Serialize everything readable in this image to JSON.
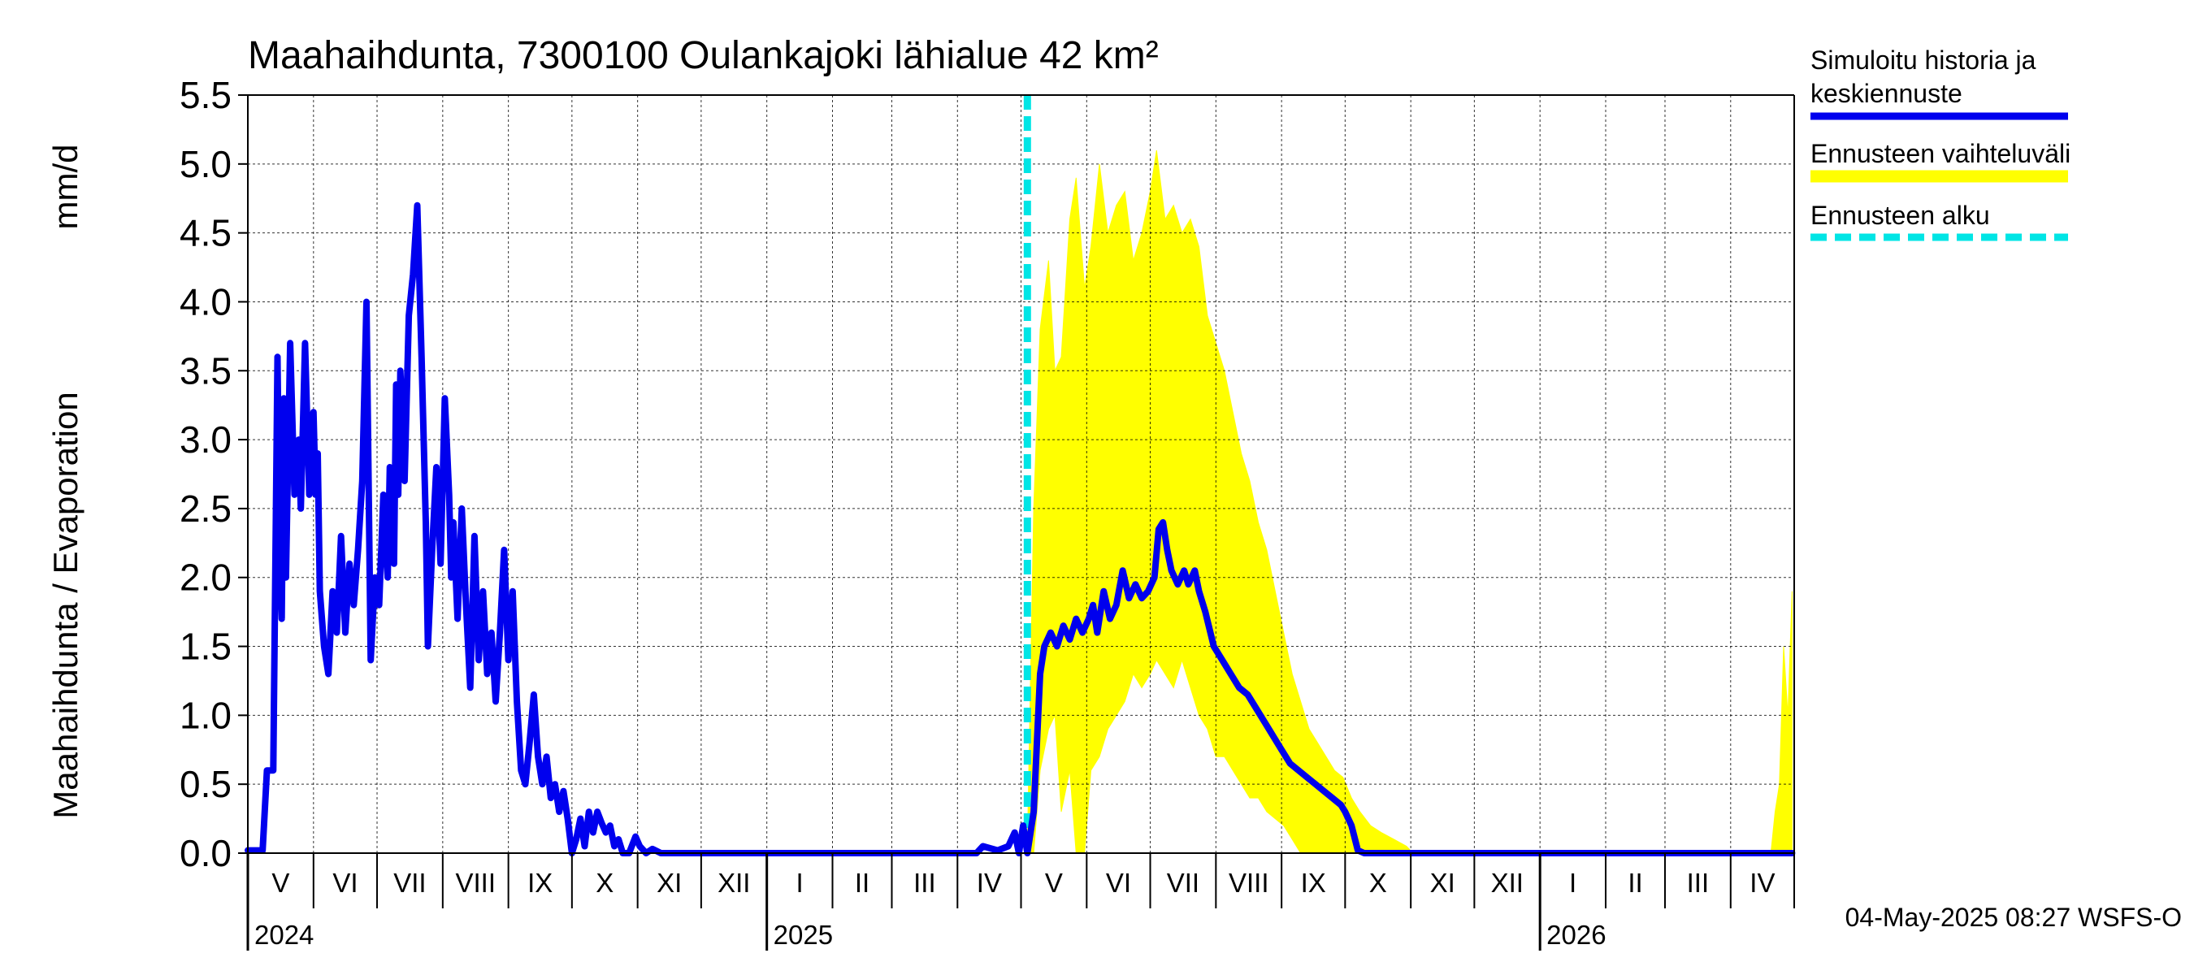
{
  "chart_data": {
    "type": "line",
    "title": "Maahaihdunta, 7300100 Oulankajoki lähialue 42 km²",
    "ylabel_left": "Maahaihdunta / Evaporation",
    "ylabel_unit": "mm/d",
    "ylim": [
      0,
      5.5
    ],
    "y_ticks": [
      "0.0",
      "0.5",
      "1.0",
      "1.5",
      "2.0",
      "2.5",
      "3.0",
      "3.5",
      "4.0",
      "4.5",
      "5.0",
      "5.5"
    ],
    "grid": true,
    "x_range_months": [
      "2024-05",
      "2026-04"
    ],
    "month_labels": [
      "V",
      "VI",
      "VII",
      "VIII",
      "IX",
      "X",
      "XI",
      "XII",
      "I",
      "II",
      "III",
      "IV",
      "V",
      "VI",
      "VII",
      "VIII",
      "IX",
      "X",
      "XI",
      "XII",
      "I",
      "II",
      "III",
      "IV"
    ],
    "year_labels": [
      "2024",
      "2025",
      "2026"
    ],
    "forecast_start": "2025-05-04",
    "legend_placement": "right",
    "legend": {
      "simulated_line1": "Simuloitu historia ja",
      "simulated_line2": "keskiennuste",
      "range": "Ennusteen vaihteluväli",
      "start": "Ennusteen alku"
    },
    "colors": {
      "simulated": "#0000ee",
      "range": "#ffff00",
      "forecast_start": "#00e5e5",
      "grid": "#000000"
    },
    "series": [
      {
        "name": "Simuloitu historia ja keskiennuste",
        "points": [
          [
            "2024-05-01",
            0.02
          ],
          [
            "2024-05-08",
            0.02
          ],
          [
            "2024-05-10",
            0.6
          ],
          [
            "2024-05-13",
            0.6
          ],
          [
            "2024-05-15",
            3.6
          ],
          [
            "2024-05-16",
            2.2
          ],
          [
            "2024-05-17",
            1.7
          ],
          [
            "2024-05-18",
            3.3
          ],
          [
            "2024-05-19",
            2.0
          ],
          [
            "2024-05-21",
            3.7
          ],
          [
            "2024-05-23",
            2.6
          ],
          [
            "2024-05-25",
            3.0
          ],
          [
            "2024-05-26",
            2.5
          ],
          [
            "2024-05-28",
            3.7
          ],
          [
            "2024-05-30",
            2.6
          ],
          [
            "2024-06-01",
            3.2
          ],
          [
            "2024-06-02",
            2.6
          ],
          [
            "2024-06-03",
            2.9
          ],
          [
            "2024-06-04",
            1.9
          ],
          [
            "2024-06-06",
            1.5
          ],
          [
            "2024-06-08",
            1.3
          ],
          [
            "2024-06-10",
            1.9
          ],
          [
            "2024-06-12",
            1.6
          ],
          [
            "2024-06-14",
            2.3
          ],
          [
            "2024-06-16",
            1.6
          ],
          [
            "2024-06-18",
            2.1
          ],
          [
            "2024-06-20",
            1.8
          ],
          [
            "2024-06-22",
            2.2
          ],
          [
            "2024-06-24",
            2.7
          ],
          [
            "2024-06-26",
            4.0
          ],
          [
            "2024-06-28",
            1.4
          ],
          [
            "2024-06-30",
            2.0
          ],
          [
            "2024-07-02",
            1.8
          ],
          [
            "2024-07-04",
            2.6
          ],
          [
            "2024-07-06",
            2.0
          ],
          [
            "2024-07-07",
            2.8
          ],
          [
            "2024-07-09",
            2.1
          ],
          [
            "2024-07-10",
            3.4
          ],
          [
            "2024-07-11",
            2.6
          ],
          [
            "2024-07-12",
            3.5
          ],
          [
            "2024-07-14",
            2.7
          ],
          [
            "2024-07-16",
            3.9
          ],
          [
            "2024-07-18",
            4.2
          ],
          [
            "2024-07-20",
            4.7
          ],
          [
            "2024-07-22",
            3.6
          ],
          [
            "2024-07-24",
            2.4
          ],
          [
            "2024-07-25",
            1.5
          ],
          [
            "2024-07-27",
            2.2
          ],
          [
            "2024-07-29",
            2.8
          ],
          [
            "2024-07-31",
            2.1
          ],
          [
            "2024-08-02",
            3.3
          ],
          [
            "2024-08-04",
            2.6
          ],
          [
            "2024-08-05",
            2.0
          ],
          [
            "2024-08-06",
            2.4
          ],
          [
            "2024-08-08",
            1.7
          ],
          [
            "2024-08-10",
            2.5
          ],
          [
            "2024-08-12",
            1.8
          ],
          [
            "2024-08-14",
            1.2
          ],
          [
            "2024-08-16",
            2.3
          ],
          [
            "2024-08-18",
            1.4
          ],
          [
            "2024-08-20",
            1.9
          ],
          [
            "2024-08-22",
            1.3
          ],
          [
            "2024-08-24",
            1.6
          ],
          [
            "2024-08-26",
            1.1
          ],
          [
            "2024-08-28",
            1.6
          ],
          [
            "2024-08-30",
            2.2
          ],
          [
            "2024-09-01",
            1.4
          ],
          [
            "2024-09-03",
            1.9
          ],
          [
            "2024-09-05",
            1.1
          ],
          [
            "2024-09-07",
            0.6
          ],
          [
            "2024-09-09",
            0.5
          ],
          [
            "2024-09-11",
            0.8
          ],
          [
            "2024-09-13",
            1.15
          ],
          [
            "2024-09-15",
            0.7
          ],
          [
            "2024-09-17",
            0.5
          ],
          [
            "2024-09-19",
            0.7
          ],
          [
            "2024-09-21",
            0.4
          ],
          [
            "2024-09-23",
            0.5
          ],
          [
            "2024-09-25",
            0.3
          ],
          [
            "2024-09-27",
            0.45
          ],
          [
            "2024-09-29",
            0.25
          ],
          [
            "2024-10-01",
            0.0
          ],
          [
            "2024-10-03",
            0.1
          ],
          [
            "2024-10-05",
            0.25
          ],
          [
            "2024-10-07",
            0.05
          ],
          [
            "2024-10-09",
            0.3
          ],
          [
            "2024-10-11",
            0.15
          ],
          [
            "2024-10-13",
            0.3
          ],
          [
            "2024-10-15",
            0.22
          ],
          [
            "2024-10-17",
            0.15
          ],
          [
            "2024-10-19",
            0.2
          ],
          [
            "2024-10-21",
            0.05
          ],
          [
            "2024-10-23",
            0.1
          ],
          [
            "2024-10-25",
            0.0
          ],
          [
            "2024-10-28",
            0.0
          ],
          [
            "2024-10-31",
            0.12
          ],
          [
            "2024-11-02",
            0.05
          ],
          [
            "2024-11-05",
            0.0
          ],
          [
            "2024-11-08",
            0.03
          ],
          [
            "2024-11-12",
            0.0
          ],
          [
            "2025-04-10",
            0.0
          ],
          [
            "2025-04-13",
            0.05
          ],
          [
            "2025-04-20",
            0.02
          ],
          [
            "2025-04-25",
            0.05
          ],
          [
            "2025-04-28",
            0.15
          ],
          [
            "2025-04-30",
            0.0
          ],
          [
            "2025-05-02",
            0.2
          ],
          [
            "2025-05-04",
            0.0
          ],
          [
            "2025-05-07",
            0.3
          ],
          [
            "2025-05-10",
            1.3
          ],
          [
            "2025-05-12",
            1.5
          ],
          [
            "2025-05-15",
            1.6
          ],
          [
            "2025-05-18",
            1.5
          ],
          [
            "2025-05-21",
            1.65
          ],
          [
            "2025-05-24",
            1.55
          ],
          [
            "2025-05-27",
            1.7
          ],
          [
            "2025-05-30",
            1.6
          ],
          [
            "2025-06-02",
            1.7
          ],
          [
            "2025-06-04",
            1.8
          ],
          [
            "2025-06-06",
            1.6
          ],
          [
            "2025-06-09",
            1.9
          ],
          [
            "2025-06-12",
            1.7
          ],
          [
            "2025-06-15",
            1.8
          ],
          [
            "2025-06-18",
            2.05
          ],
          [
            "2025-06-21",
            1.85
          ],
          [
            "2025-06-24",
            1.95
          ],
          [
            "2025-06-27",
            1.85
          ],
          [
            "2025-06-30",
            1.9
          ],
          [
            "2025-07-03",
            2.0
          ],
          [
            "2025-07-05",
            2.35
          ],
          [
            "2025-07-07",
            2.4
          ],
          [
            "2025-07-09",
            2.2
          ],
          [
            "2025-07-11",
            2.05
          ],
          [
            "2025-07-14",
            1.95
          ],
          [
            "2025-07-17",
            2.05
          ],
          [
            "2025-07-19",
            1.95
          ],
          [
            "2025-07-22",
            2.05
          ],
          [
            "2025-07-24",
            1.9
          ],
          [
            "2025-07-27",
            1.75
          ],
          [
            "2025-07-31",
            1.5
          ],
          [
            "2025-08-04",
            1.4
          ],
          [
            "2025-08-08",
            1.3
          ],
          [
            "2025-08-12",
            1.2
          ],
          [
            "2025-08-16",
            1.15
          ],
          [
            "2025-08-20",
            1.05
          ],
          [
            "2025-08-24",
            0.95
          ],
          [
            "2025-08-28",
            0.85
          ],
          [
            "2025-09-01",
            0.75
          ],
          [
            "2025-09-05",
            0.65
          ],
          [
            "2025-09-09",
            0.6
          ],
          [
            "2025-09-13",
            0.55
          ],
          [
            "2025-09-17",
            0.5
          ],
          [
            "2025-09-21",
            0.45
          ],
          [
            "2025-09-25",
            0.4
          ],
          [
            "2025-09-29",
            0.35
          ],
          [
            "2025-10-01",
            0.3
          ],
          [
            "2025-10-04",
            0.2
          ],
          [
            "2025-10-07",
            0.02
          ],
          [
            "2025-10-10",
            0.0
          ],
          [
            "2026-04-30",
            0.0
          ]
        ]
      },
      {
        "name": "Ennusteen vaihteluväli",
        "points": [
          [
            "2025-05-04",
            0.0,
            0.05
          ],
          [
            "2025-05-07",
            0.0,
            2.5
          ],
          [
            "2025-05-10",
            0.6,
            3.8
          ],
          [
            "2025-05-14",
            0.9,
            4.3
          ],
          [
            "2025-05-17",
            1.0,
            3.5
          ],
          [
            "2025-05-20",
            0.3,
            3.6
          ],
          [
            "2025-05-24",
            0.6,
            4.6
          ],
          [
            "2025-05-27",
            0.0,
            4.9
          ],
          [
            "2025-05-31",
            0.0,
            4.1
          ],
          [
            "2025-06-03",
            0.6,
            4.4
          ],
          [
            "2025-06-07",
            0.7,
            5.0
          ],
          [
            "2025-06-11",
            0.9,
            4.5
          ],
          [
            "2025-06-15",
            1.0,
            4.7
          ],
          [
            "2025-06-19",
            1.1,
            4.8
          ],
          [
            "2025-06-23",
            1.3,
            4.3
          ],
          [
            "2025-06-27",
            1.2,
            4.5
          ],
          [
            "2025-07-01",
            1.3,
            4.8
          ],
          [
            "2025-07-04",
            1.4,
            5.1
          ],
          [
            "2025-07-08",
            1.3,
            4.6
          ],
          [
            "2025-07-12",
            1.2,
            4.7
          ],
          [
            "2025-07-16",
            1.4,
            4.5
          ],
          [
            "2025-07-20",
            1.2,
            4.6
          ],
          [
            "2025-07-24",
            1.0,
            4.4
          ],
          [
            "2025-07-28",
            0.9,
            3.9
          ],
          [
            "2025-08-01",
            0.7,
            3.7
          ],
          [
            "2025-08-05",
            0.7,
            3.5
          ],
          [
            "2025-08-09",
            0.6,
            3.2
          ],
          [
            "2025-08-13",
            0.5,
            2.9
          ],
          [
            "2025-08-17",
            0.4,
            2.7
          ],
          [
            "2025-08-21",
            0.4,
            2.4
          ],
          [
            "2025-08-25",
            0.3,
            2.2
          ],
          [
            "2025-08-29",
            0.25,
            1.9
          ],
          [
            "2025-09-02",
            0.2,
            1.6
          ],
          [
            "2025-09-06",
            0.1,
            1.3
          ],
          [
            "2025-09-10",
            0.0,
            1.1
          ],
          [
            "2025-09-14",
            0.0,
            0.9
          ],
          [
            "2025-09-18",
            0.0,
            0.8
          ],
          [
            "2025-09-22",
            0.0,
            0.7
          ],
          [
            "2025-09-26",
            0.0,
            0.6
          ],
          [
            "2025-09-30",
            0.0,
            0.55
          ],
          [
            "2025-10-04",
            0.0,
            0.4
          ],
          [
            "2025-10-08",
            0.0,
            0.3
          ],
          [
            "2025-10-13",
            0.0,
            0.2
          ],
          [
            "2025-10-18",
            0.0,
            0.15
          ],
          [
            "2025-10-24",
            0.0,
            0.1
          ],
          [
            "2025-10-30",
            0.0,
            0.05
          ],
          [
            "2025-11-02",
            0.0,
            0.0
          ],
          [
            "2026-04-20",
            0.0,
            0.0
          ],
          [
            "2026-04-22",
            0.0,
            0.3
          ],
          [
            "2026-04-24",
            0.0,
            0.5
          ],
          [
            "2026-04-26",
            0.0,
            1.5
          ],
          [
            "2026-04-28",
            0.0,
            1.0
          ],
          [
            "2026-04-30",
            0.0,
            1.9
          ]
        ]
      }
    ]
  },
  "footer": {
    "timestamp": "04-May-2025 08:27 WSFS-O"
  }
}
